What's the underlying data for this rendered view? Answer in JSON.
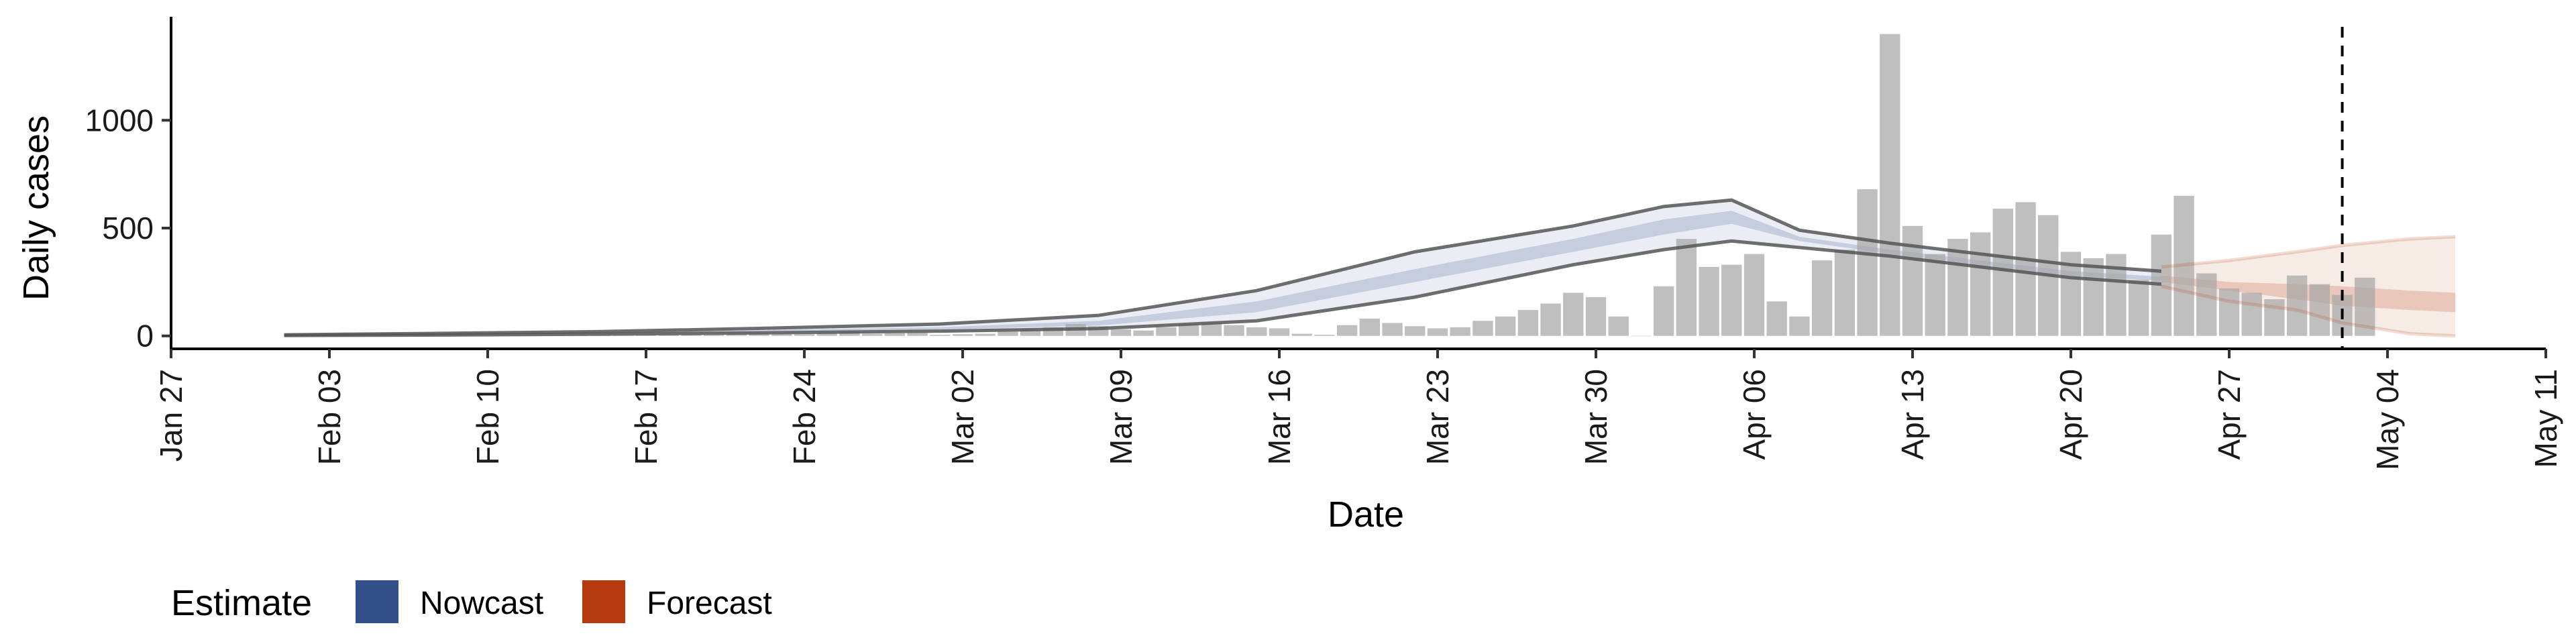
{
  "chart_data": {
    "type": "bar",
    "title": "",
    "xlabel": "Date",
    "ylabel": "Daily cases",
    "x_range": [
      "2020-01-27",
      "2020-05-11"
    ],
    "ylim": [
      -60,
      1480
    ],
    "x_ticks": [
      {
        "date": "2020-01-27",
        "label": "Jan 27"
      },
      {
        "date": "2020-02-03",
        "label": "Feb 03"
      },
      {
        "date": "2020-02-10",
        "label": "Feb 10"
      },
      {
        "date": "2020-02-17",
        "label": "Feb 17"
      },
      {
        "date": "2020-02-24",
        "label": "Feb 24"
      },
      {
        "date": "2020-03-02",
        "label": "Mar 02"
      },
      {
        "date": "2020-03-09",
        "label": "Mar 09"
      },
      {
        "date": "2020-03-16",
        "label": "Mar 16"
      },
      {
        "date": "2020-03-23",
        "label": "Mar 23"
      },
      {
        "date": "2020-03-30",
        "label": "Mar 30"
      },
      {
        "date": "2020-04-06",
        "label": "Apr 06"
      },
      {
        "date": "2020-04-13",
        "label": "Apr 13"
      },
      {
        "date": "2020-04-20",
        "label": "Apr 20"
      },
      {
        "date": "2020-04-27",
        "label": "Apr 27"
      },
      {
        "date": "2020-05-04",
        "label": "May 04"
      },
      {
        "date": "2020-05-11",
        "label": "May 11"
      }
    ],
    "y_ticks": [
      0,
      500,
      1000
    ],
    "grid": false,
    "vline_date": "2020-05-02",
    "bars": {
      "start_date": "2020-02-07",
      "values": [
        1,
        0,
        1,
        0,
        1,
        2,
        1,
        3,
        4,
        2,
        5,
        6,
        8,
        5,
        10,
        12,
        9,
        8,
        15,
        20,
        10,
        12,
        14,
        5,
        8,
        10,
        20,
        30,
        40,
        55,
        45,
        30,
        25,
        40,
        55,
        60,
        50,
        40,
        35,
        10,
        5,
        50,
        80,
        60,
        45,
        35,
        40,
        70,
        90,
        120,
        150,
        200,
        180,
        90,
        0,
        230,
        450,
        320,
        330,
        380,
        160,
        90,
        350,
        400,
        680,
        1400,
        510,
        380,
        450,
        480,
        590,
        620,
        560,
        390,
        360,
        380,
        260,
        470,
        650,
        290,
        220,
        200,
        170,
        280,
        240,
        190,
        270
      ]
    },
    "series": [
      {
        "name": "Nowcast",
        "color": "#33508a",
        "dates": [
          "2020-02-01",
          "2020-02-08",
          "2020-02-15",
          "2020-02-22",
          "2020-03-01",
          "2020-03-08",
          "2020-03-15",
          "2020-03-22",
          "2020-03-29",
          "2020-04-02",
          "2020-04-05",
          "2020-04-08",
          "2020-04-12",
          "2020-04-16",
          "2020-04-20",
          "2020-04-24"
        ],
        "lower_outer": [
          2,
          4,
          8,
          14,
          22,
          34,
          70,
          180,
          330,
          400,
          440,
          410,
          370,
          320,
          270,
          240
        ],
        "lower_inner": [
          3,
          6,
          11,
          19,
          30,
          48,
          110,
          250,
          390,
          470,
          520,
          440,
          380,
          330,
          280,
          255
        ],
        "upper_inner": [
          4,
          9,
          15,
          26,
          40,
          70,
          160,
          310,
          450,
          540,
          580,
          460,
          400,
          350,
          300,
          275
        ],
        "upper_outer": [
          5,
          12,
          20,
          35,
          55,
          95,
          210,
          390,
          510,
          600,
          630,
          490,
          430,
          380,
          330,
          300
        ]
      },
      {
        "name": "Forecast",
        "color": "#b53a0d",
        "dates": [
          "2020-04-24",
          "2020-04-27",
          "2020-04-30",
          "2020-05-02",
          "2020-05-05",
          "2020-05-07"
        ],
        "lower_outer": [
          230,
          160,
          120,
          60,
          10,
          0
        ],
        "lower_inner": [
          250,
          210,
          170,
          140,
          120,
          110
        ],
        "upper_inner": [
          280,
          250,
          240,
          230,
          210,
          200
        ],
        "upper_outer": [
          320,
          350,
          390,
          420,
          450,
          460
        ]
      }
    ],
    "legend": {
      "title": "Estimate",
      "position": "bottom-left",
      "entries": [
        {
          "label": "Nowcast",
          "color": "#33508a"
        },
        {
          "label": "Forecast",
          "color": "#b53a0d"
        }
      ]
    }
  }
}
